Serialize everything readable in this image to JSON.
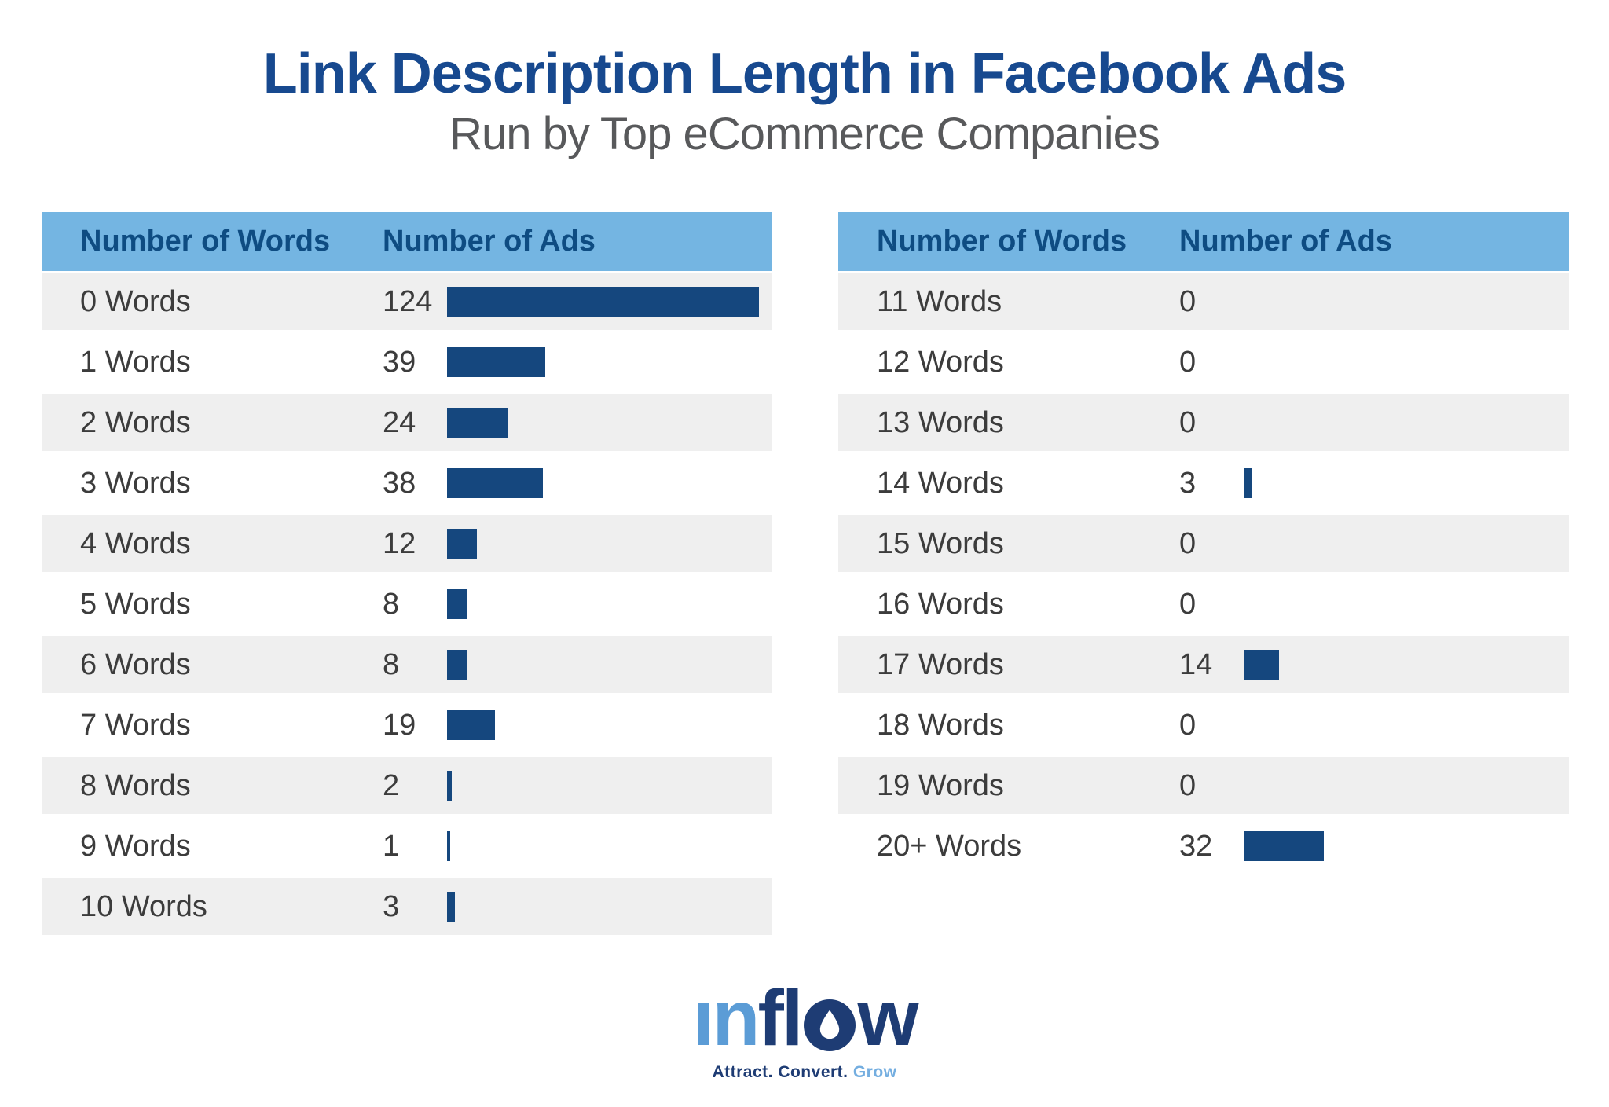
{
  "title": "Link Description Length in Facebook Ads",
  "subtitle": "Run by Top eCommerce Companies",
  "colors": {
    "title_navy": "#17498f",
    "subtitle_gray": "#58595b",
    "header_bg": "#74b5e2",
    "header_text": "#0e4c82",
    "bar_navy": "#15477e",
    "row_alt_gray": "#efefef",
    "row_text": "#3c3c3c",
    "logo_light_blue": "#5b9cd6",
    "logo_dark_navy": "#1e3c74"
  },
  "tables": [
    {
      "headers": [
        "Number of Words",
        "Number of Ads"
      ],
      "rows": [
        {
          "label": "0 Words",
          "ads": 124
        },
        {
          "label": "1 Words",
          "ads": 39
        },
        {
          "label": "2 Words",
          "ads": 24
        },
        {
          "label": "3 Words",
          "ads": 38
        },
        {
          "label": "4 Words",
          "ads": 12
        },
        {
          "label": "5 Words",
          "ads": 8
        },
        {
          "label": "6 Words",
          "ads": 8
        },
        {
          "label": "7 Words",
          "ads": 19
        },
        {
          "label": "8 Words",
          "ads": 2
        },
        {
          "label": "9 Words",
          "ads": 1
        },
        {
          "label": "10 Words",
          "ads": 3
        }
      ]
    },
    {
      "headers": [
        "Number of Words",
        "Number of Ads"
      ],
      "rows": [
        {
          "label": "11 Words",
          "ads": 0
        },
        {
          "label": "12 Words",
          "ads": 0
        },
        {
          "label": "13 Words",
          "ads": 0
        },
        {
          "label": "14 Words",
          "ads": 3
        },
        {
          "label": "15 Words",
          "ads": 0
        },
        {
          "label": "16 Words",
          "ads": 0
        },
        {
          "label": "17 Words",
          "ads": 14
        },
        {
          "label": "18 Words",
          "ads": 0
        },
        {
          "label": "19 Words",
          "ads": 0
        },
        {
          "label": "20+ Words",
          "ads": 32
        }
      ]
    }
  ],
  "logo": {
    "part_light": "ın",
    "part_dark_left": "fl",
    "part_dark_right": "w",
    "tagline_dark": "Attract. Convert.",
    "tagline_light": "Grow"
  },
  "chart_data": {
    "type": "bar",
    "orientation": "horizontal",
    "title": "Link Description Length in Facebook Ads",
    "subtitle": "Run by Top eCommerce Companies",
    "xlabel": "Number of Words",
    "ylabel": "Number of Ads",
    "categories": [
      "0 Words",
      "1 Words",
      "2 Words",
      "3 Words",
      "4 Words",
      "5 Words",
      "6 Words",
      "7 Words",
      "8 Words",
      "9 Words",
      "10 Words",
      "11 Words",
      "12 Words",
      "13 Words",
      "14 Words",
      "15 Words",
      "16 Words",
      "17 Words",
      "18 Words",
      "19 Words",
      "20+ Words"
    ],
    "values": [
      124,
      39,
      24,
      38,
      12,
      8,
      8,
      19,
      2,
      1,
      3,
      0,
      0,
      0,
      3,
      0,
      0,
      14,
      0,
      0,
      32
    ],
    "max_value": 124,
    "grid": false,
    "legend": false,
    "layout": "two side-by-side tables with value labels and inline data bars"
  }
}
